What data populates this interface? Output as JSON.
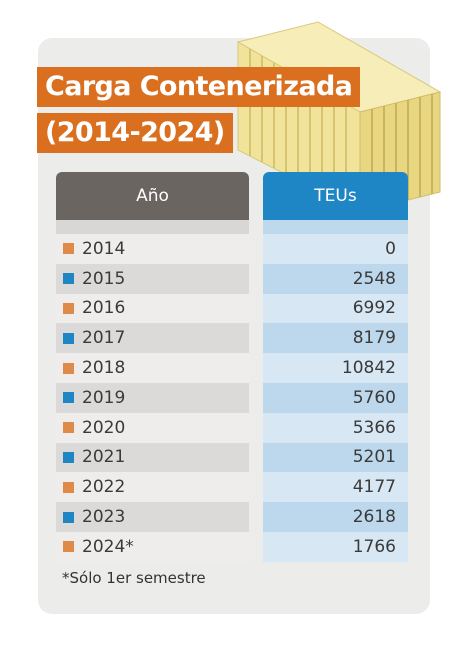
{
  "title": {
    "line1": "Carga Contenerizada",
    "line2": "(2014-2024)"
  },
  "table": {
    "header_year": "Año",
    "header_teus": "TEUs"
  },
  "footnote": "*Sólo 1er semestre",
  "colors": {
    "title_bg": "#d96f1f",
    "header_year_bg": "#6b6561",
    "header_teus_bg": "#1f86c6",
    "square_orange": "#e08a4a",
    "square_blue": "#1f86c6",
    "container_yellow": "#f3e59a"
  },
  "chart_data": {
    "type": "table",
    "columns": [
      "Año",
      "TEUs"
    ],
    "rows": [
      {
        "year": "2014",
        "teus": "0",
        "square": "orange"
      },
      {
        "year": "2015",
        "teus": "2548",
        "square": "blue"
      },
      {
        "year": "2016",
        "teus": "6992",
        "square": "orange"
      },
      {
        "year": "2017",
        "teus": "8179",
        "square": "blue"
      },
      {
        "year": "2018",
        "teus": "10842",
        "square": "orange"
      },
      {
        "year": "2019",
        "teus": "5760",
        "square": "blue"
      },
      {
        "year": "2020",
        "teus": "5366",
        "square": "orange"
      },
      {
        "year": "2021",
        "teus": "5201",
        "square": "blue"
      },
      {
        "year": "2022",
        "teus": "4177",
        "square": "orange"
      },
      {
        "year": "2023",
        "teus": "2618",
        "square": "blue"
      },
      {
        "year": "2024*",
        "teus": "1766",
        "square": "orange"
      }
    ]
  }
}
